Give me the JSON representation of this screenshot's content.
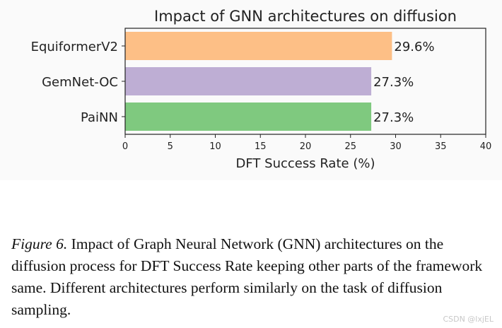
{
  "chart_data": {
    "type": "bar",
    "orientation": "horizontal",
    "title": "Impact of GNN architectures on diffusion",
    "xlabel": "DFT Success Rate (%)",
    "ylabel": "",
    "xlim": [
      0,
      40
    ],
    "xticks": [
      0,
      5,
      10,
      15,
      20,
      25,
      30,
      35,
      40
    ],
    "categories": [
      "EquiformerV2",
      "GemNet-OC",
      "PaiNN"
    ],
    "values": [
      29.6,
      27.3,
      27.3
    ],
    "data_labels": [
      "29.6%",
      "27.3%",
      "27.3%"
    ],
    "colors": [
      "#fdbf86",
      "#beaed4",
      "#7fc97f"
    ],
    "grid": false
  },
  "caption": {
    "label": "Figure 6.",
    "text": " Impact of Graph Neural Network (GNN) architectures on the diffusion process for DFT Success Rate keeping other parts of the framework same. Different architectures perform similarly on the task of diffusion sampling."
  },
  "watermark": "CSDN @lxjEL"
}
